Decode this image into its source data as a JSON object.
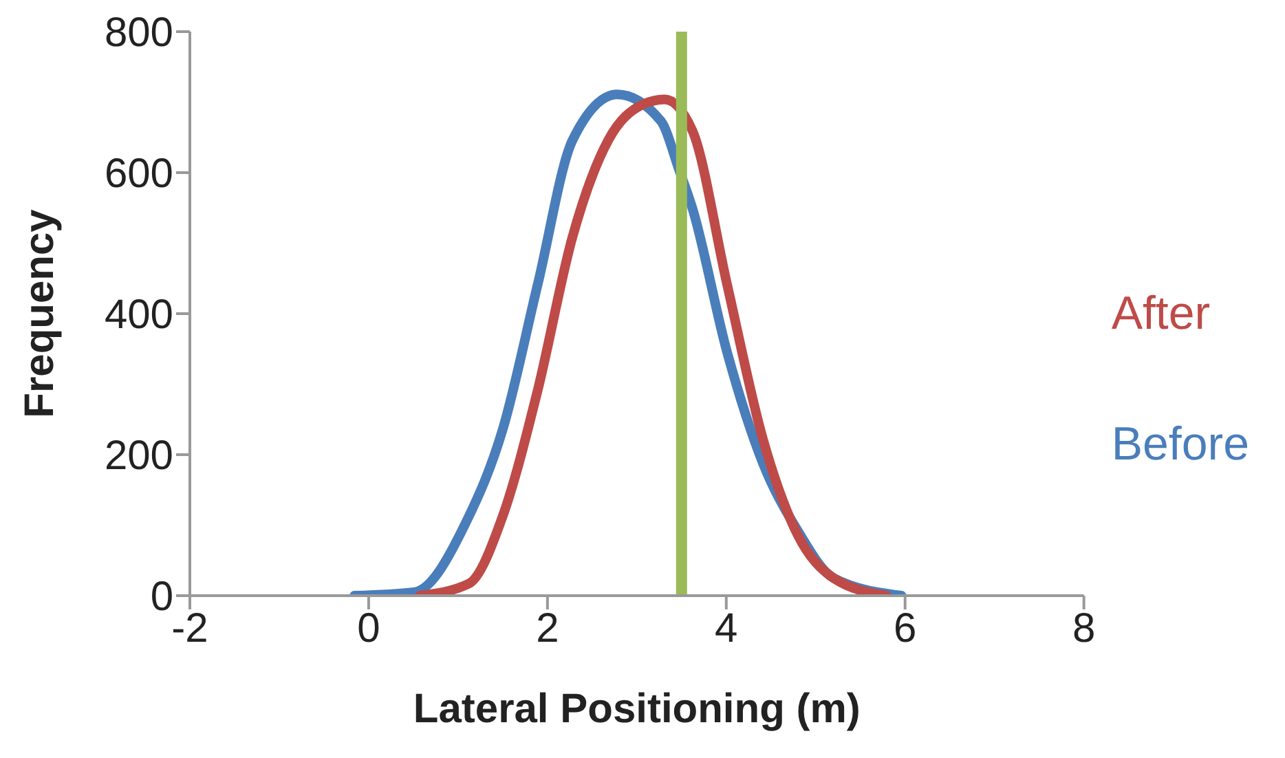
{
  "chart_data": {
    "type": "line",
    "xlabel": "Lateral Positioning (m)",
    "ylabel": "Frequency",
    "xlim": [
      -2,
      8
    ],
    "xticks": [
      -2,
      0,
      2,
      4,
      6,
      8
    ],
    "ylim": [
      0,
      800
    ],
    "yticks": [
      0,
      200,
      400,
      600,
      800
    ],
    "grid": false,
    "legend": "right",
    "marker": "none",
    "line_style": "solid",
    "series": [
      {
        "name": "Before",
        "color": "#4a7ebb",
        "x": [
          -0.16,
          0.51,
          1.1,
          1.5,
          1.89,
          2.28,
          2.78,
          3.27,
          3.47,
          3.62,
          4.01,
          4.41,
          4.8,
          5.2,
          5.96
        ],
        "values": [
          0,
          5,
          107,
          236,
          441,
          646,
          711,
          673,
          605,
          550,
          345,
          188,
          92,
          25,
          0
        ]
      },
      {
        "name": "After",
        "color": "#be4b48",
        "x": [
          0.57,
          1.12,
          1.5,
          1.89,
          2.28,
          2.68,
          3.07,
          3.31,
          3.62,
          4.01,
          4.41,
          4.8,
          5.2,
          5.79
        ],
        "values": [
          0,
          17,
          113,
          291,
          509,
          646,
          697,
          704,
          660,
          441,
          222,
          86,
          25,
          0
        ]
      }
    ],
    "ref_lines": [
      {
        "axis": "x",
        "value": 3.5,
        "color": "#9bbb59"
      }
    ]
  }
}
